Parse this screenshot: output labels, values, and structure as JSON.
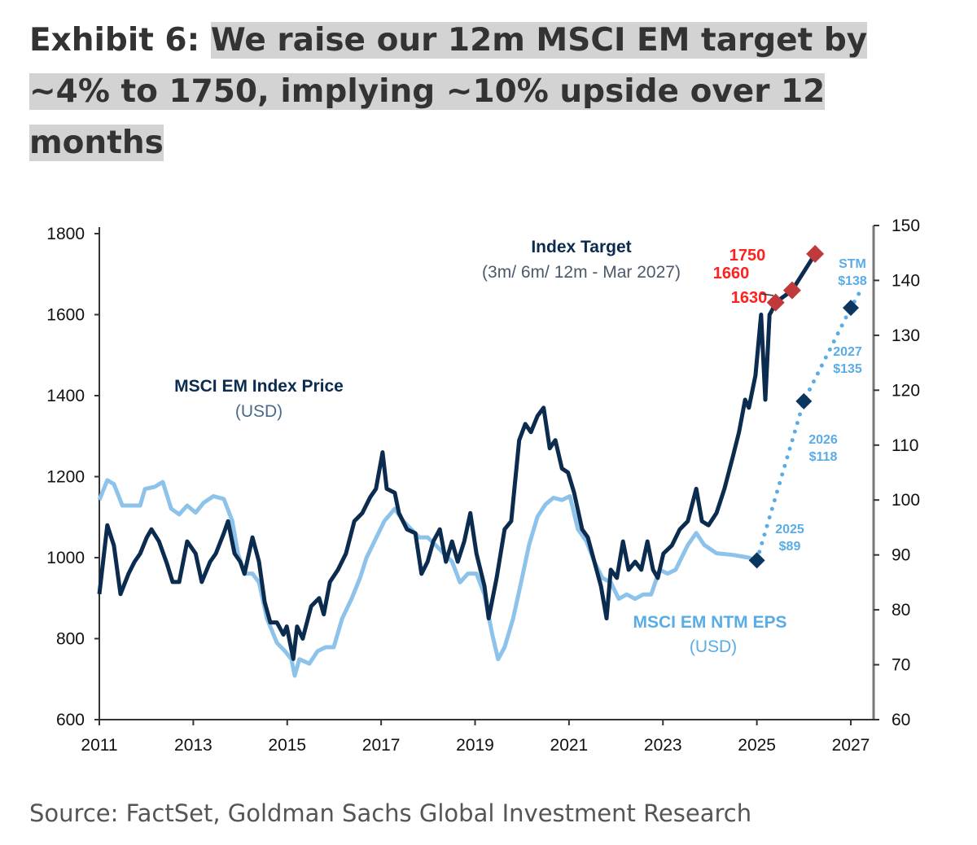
{
  "title": {
    "prefix": "Exhibit 6: ",
    "highlighted": "We raise our 12m MSCI EM target by ~4% to 1750, implying ~10% upside over 12 months"
  },
  "source": "Source: FactSet, Goldman Sachs Global Investment Research",
  "colors": {
    "price": "#0b2b4f",
    "eps": "#8dc3ea",
    "target": "#c0393b",
    "target_label": "#ff2020",
    "eps_forecast": "#5aace6",
    "eps_diamond": "#0b3660"
  },
  "chart_data": {
    "type": "line",
    "x_range": [
      2011,
      2027
    ],
    "x_ticks": [
      "2011",
      "2013",
      "2015",
      "2017",
      "2019",
      "2021",
      "2023",
      "2025",
      "2027"
    ],
    "y_left": {
      "range": [
        600,
        1800
      ],
      "ticks": [
        "600",
        "800",
        "1000",
        "1200",
        "1400",
        "1600",
        "1800"
      ]
    },
    "y_right": {
      "range": [
        60,
        150
      ],
      "ticks": [
        "60",
        "70",
        "80",
        "90",
        "100",
        "110",
        "120",
        "130",
        "140",
        "150"
      ]
    },
    "grid": false,
    "annotations": {
      "price_label": "MSCI EM Index Price",
      "price_unit": "(USD)",
      "eps_label": "MSCI EM NTM EPS",
      "eps_unit": "(USD)",
      "target_label": "Index Target",
      "target_sub": "(3m/ 6m/ 12m - Mar 2027)"
    },
    "series": [
      {
        "name": "MSCI EM Index Price (USD)",
        "axis": "left",
        "points": [
          [
            2011.0,
            910
          ],
          [
            2011.17,
            1080
          ],
          [
            2011.31,
            1030
          ],
          [
            2011.45,
            910
          ],
          [
            2011.62,
            960
          ],
          [
            2011.75,
            990
          ],
          [
            2011.87,
            1010
          ],
          [
            2012.01,
            1050
          ],
          [
            2012.11,
            1070
          ],
          [
            2012.27,
            1040
          ],
          [
            2012.44,
            985
          ],
          [
            2012.56,
            940
          ],
          [
            2012.7,
            940
          ],
          [
            2012.87,
            1040
          ],
          [
            2013.05,
            1010
          ],
          [
            2013.18,
            940
          ],
          [
            2013.36,
            990
          ],
          [
            2013.48,
            1010
          ],
          [
            2013.65,
            1060
          ],
          [
            2013.74,
            1090
          ],
          [
            2013.88,
            1010
          ],
          [
            2014.0,
            990
          ],
          [
            2014.09,
            960
          ],
          [
            2014.26,
            1050
          ],
          [
            2014.4,
            990
          ],
          [
            2014.52,
            890
          ],
          [
            2014.64,
            840
          ],
          [
            2014.78,
            840
          ],
          [
            2014.92,
            810
          ],
          [
            2014.99,
            830
          ],
          [
            2015.13,
            750
          ],
          [
            2015.21,
            830
          ],
          [
            2015.33,
            800
          ],
          [
            2015.51,
            880
          ],
          [
            2015.68,
            900
          ],
          [
            2015.78,
            860
          ],
          [
            2015.91,
            940
          ],
          [
            2016.08,
            970
          ],
          [
            2016.25,
            1010
          ],
          [
            2016.43,
            1090
          ],
          [
            2016.6,
            1110
          ],
          [
            2016.77,
            1150
          ],
          [
            2016.89,
            1170
          ],
          [
            2017.03,
            1260
          ],
          [
            2017.12,
            1170
          ],
          [
            2017.29,
            1160
          ],
          [
            2017.38,
            1110
          ],
          [
            2017.55,
            1070
          ],
          [
            2017.73,
            1060
          ],
          [
            2017.86,
            960
          ],
          [
            2017.99,
            990
          ],
          [
            2018.11,
            1040
          ],
          [
            2018.25,
            1070
          ],
          [
            2018.38,
            990
          ],
          [
            2018.51,
            1040
          ],
          [
            2018.63,
            990
          ],
          [
            2018.77,
            1040
          ],
          [
            2018.9,
            1110
          ],
          [
            2019.03,
            1010
          ],
          [
            2019.2,
            930
          ],
          [
            2019.29,
            850
          ],
          [
            2019.46,
            950
          ],
          [
            2019.63,
            1070
          ],
          [
            2019.77,
            1090
          ],
          [
            2019.94,
            1290
          ],
          [
            2020.07,
            1330
          ],
          [
            2020.19,
            1310
          ],
          [
            2020.33,
            1350
          ],
          [
            2020.46,
            1370
          ],
          [
            2020.59,
            1270
          ],
          [
            2020.71,
            1290
          ],
          [
            2020.85,
            1220
          ],
          [
            2020.98,
            1210
          ],
          [
            2021.11,
            1160
          ],
          [
            2021.28,
            1070
          ],
          [
            2021.4,
            1050
          ],
          [
            2021.54,
            990
          ],
          [
            2021.68,
            930
          ],
          [
            2021.8,
            850
          ],
          [
            2021.89,
            970
          ],
          [
            2022.02,
            950
          ],
          [
            2022.15,
            1040
          ],
          [
            2022.27,
            970
          ],
          [
            2022.41,
            990
          ],
          [
            2022.54,
            970
          ],
          [
            2022.67,
            1040
          ],
          [
            2022.79,
            970
          ],
          [
            2022.89,
            950
          ],
          [
            2023.01,
            1010
          ],
          [
            2023.19,
            1030
          ],
          [
            2023.36,
            1070
          ],
          [
            2023.53,
            1090
          ],
          [
            2023.71,
            1170
          ],
          [
            2023.83,
            1090
          ],
          [
            2023.97,
            1080
          ],
          [
            2024.14,
            1110
          ],
          [
            2024.31,
            1170
          ],
          [
            2024.49,
            1250
          ],
          [
            2024.62,
            1310
          ],
          [
            2024.75,
            1390
          ],
          [
            2024.83,
            1370
          ],
          [
            2024.97,
            1450
          ],
          [
            2025.09,
            1600
          ],
          [
            2025.18,
            1390
          ],
          [
            2025.27,
            1600
          ],
          [
            2025.32,
            1610
          ]
        ]
      },
      {
        "name": "MSCI EM NTM EPS (USD)",
        "axis": "right",
        "points": [
          [
            2011.0,
            100
          ],
          [
            2011.17,
            103.6
          ],
          [
            2011.31,
            102.9
          ],
          [
            2011.49,
            99
          ],
          [
            2011.66,
            99
          ],
          [
            2011.87,
            99
          ],
          [
            2011.97,
            102
          ],
          [
            2012.18,
            102.4
          ],
          [
            2012.35,
            103.3
          ],
          [
            2012.53,
            98.4
          ],
          [
            2012.7,
            97.4
          ],
          [
            2012.87,
            99
          ],
          [
            2013.05,
            97.7
          ],
          [
            2013.22,
            99.5
          ],
          [
            2013.43,
            100.7
          ],
          [
            2013.65,
            100.2
          ],
          [
            2013.83,
            96.2
          ],
          [
            2013.95,
            90.3
          ],
          [
            2014.09,
            86.6
          ],
          [
            2014.26,
            86.6
          ],
          [
            2014.4,
            85
          ],
          [
            2014.57,
            78.4
          ],
          [
            2014.78,
            74
          ],
          [
            2014.95,
            72.5
          ],
          [
            2015.09,
            71
          ],
          [
            2015.16,
            68
          ],
          [
            2015.26,
            71
          ],
          [
            2015.47,
            70.2
          ],
          [
            2015.65,
            72.5
          ],
          [
            2015.82,
            73.2
          ],
          [
            2015.99,
            73.2
          ],
          [
            2016.17,
            78.4
          ],
          [
            2016.37,
            82
          ],
          [
            2016.55,
            85.8
          ],
          [
            2016.69,
            89.5
          ],
          [
            2016.86,
            92.5
          ],
          [
            2017.07,
            96.2
          ],
          [
            2017.29,
            98.4
          ],
          [
            2017.47,
            96.2
          ],
          [
            2017.64,
            94.7
          ],
          [
            2017.81,
            93.2
          ],
          [
            2017.99,
            93.2
          ],
          [
            2018.16,
            91.8
          ],
          [
            2018.33,
            90.3
          ],
          [
            2018.51,
            88.8
          ],
          [
            2018.68,
            85
          ],
          [
            2018.85,
            86.6
          ],
          [
            2019.03,
            86.6
          ],
          [
            2019.2,
            82.8
          ],
          [
            2019.37,
            75.4
          ],
          [
            2019.49,
            71
          ],
          [
            2019.63,
            73.2
          ],
          [
            2019.81,
            78.4
          ],
          [
            2019.98,
            85
          ],
          [
            2020.15,
            91.8
          ],
          [
            2020.33,
            97
          ],
          [
            2020.5,
            99.2
          ],
          [
            2020.67,
            100.4
          ],
          [
            2020.85,
            100
          ],
          [
            2021.02,
            100.7
          ],
          [
            2021.19,
            94.7
          ],
          [
            2021.37,
            92.5
          ],
          [
            2021.54,
            88.8
          ],
          [
            2021.71,
            85.8
          ],
          [
            2021.89,
            85
          ],
          [
            2022.06,
            82
          ],
          [
            2022.23,
            82.8
          ],
          [
            2022.41,
            82
          ],
          [
            2022.58,
            82.8
          ],
          [
            2022.75,
            82.8
          ],
          [
            2022.93,
            87.3
          ],
          [
            2023.1,
            86.6
          ],
          [
            2023.27,
            87.3
          ],
          [
            2023.53,
            91.8
          ],
          [
            2023.71,
            94
          ],
          [
            2023.88,
            91.8
          ],
          [
            2024.14,
            90.3
          ],
          [
            2024.49,
            90
          ],
          [
            2024.83,
            89.5
          ],
          [
            2024.97,
            89
          ]
        ]
      },
      {
        "name": "Index Target",
        "axis": "left",
        "points": [
          [
            2025.4,
            1630
          ],
          [
            2025.75,
            1660
          ],
          [
            2026.24,
            1750
          ]
        ],
        "labels": [
          "1630",
          "1660",
          "1750"
        ]
      },
      {
        "name": "EPS forecast",
        "axis": "right",
        "points": [
          [
            2025.0,
            89
          ],
          [
            2026.0,
            118
          ],
          [
            2027.0,
            135
          ]
        ],
        "labels": [
          [
            "2025",
            "$89"
          ],
          [
            "2026",
            "$118"
          ],
          [
            "2027",
            "$135"
          ]
        ],
        "stm": {
          "point": [
            2027.2,
            138
          ],
          "label": [
            "STM",
            "$138"
          ]
        }
      }
    ]
  }
}
